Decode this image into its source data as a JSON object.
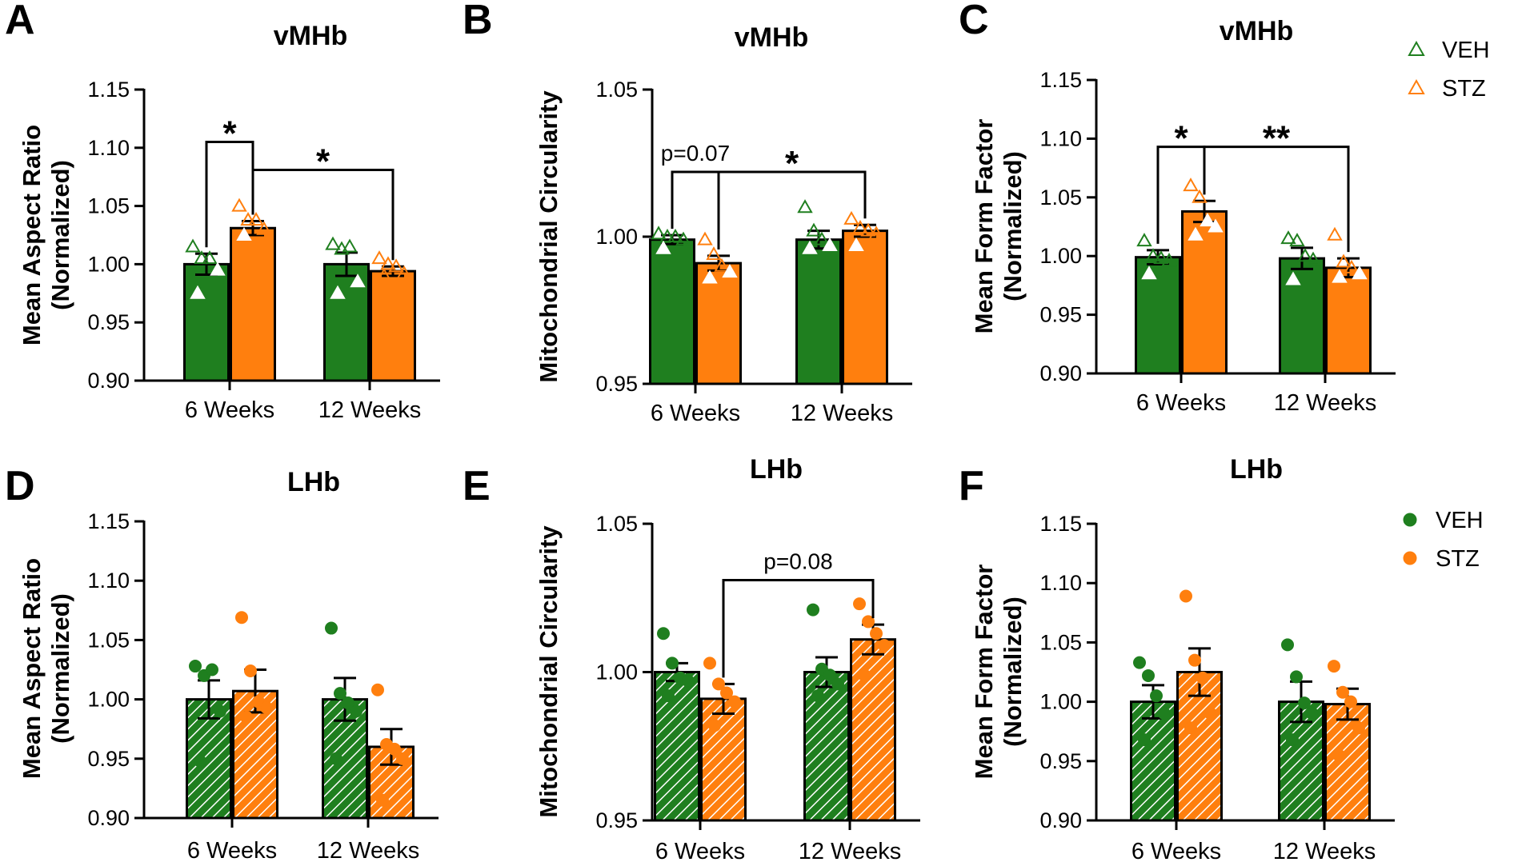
{
  "colors": {
    "veh": "#1f7f1f",
    "stz": "#ff7f0e",
    "axis": "#000000"
  },
  "legend_top": {
    "symbol": "triangle-open",
    "items": [
      "VEH",
      "STZ"
    ]
  },
  "legend_bottom": {
    "symbol": "circle-filled",
    "items": [
      "VEH",
      "STZ"
    ]
  },
  "chart_data": [
    {
      "panel": "A",
      "type": "bar",
      "title": "vMHb",
      "ylabel": [
        "Mean Aspect Ratio",
        "(Normalized)"
      ],
      "ylim": [
        0.9,
        1.15
      ],
      "yticks": [
        "0.90",
        "0.95",
        "1.00",
        "1.05",
        "1.10",
        "1.15"
      ],
      "categories": [
        "6 Weeks",
        "12 Weeks"
      ],
      "point_style": "triangle",
      "hatched": false,
      "series": [
        {
          "name": "VEH",
          "values": [
            1.0,
            1.0
          ],
          "sem": [
            0.009,
            0.01
          ],
          "points": [
            [
              1.015,
              1.005,
              1.005,
              0.995,
              0.975
            ],
            [
              1.017,
              1.013,
              1.015,
              0.985,
              0.975
            ]
          ]
        },
        {
          "name": "STZ",
          "values": [
            1.031,
            0.994
          ],
          "sem": [
            0.006,
            0.004
          ],
          "points": [
            [
              1.05,
              1.038,
              1.038,
              1.03,
              1.025
            ],
            [
              1.005,
              1.0,
              0.998,
              0.992,
              0.99
            ]
          ]
        }
      ],
      "annotations": [
        {
          "text": "*",
          "from": [
            0,
            0
          ],
          "to": [
            0,
            1
          ],
          "level": 1.105
        },
        {
          "text": "*",
          "from": [
            0,
            1
          ],
          "to": [
            1,
            1
          ],
          "level": 1.081
        }
      ]
    },
    {
      "panel": "B",
      "type": "bar",
      "title": "vMHb",
      "ylabel": [
        "Mitochondrial Circularity"
      ],
      "ylim": [
        0.95,
        1.05
      ],
      "yticks": [
        "0.95",
        "1.00",
        "1.05"
      ],
      "categories": [
        "6 Weeks",
        "12 Weeks"
      ],
      "point_style": "triangle",
      "hatched": false,
      "series": [
        {
          "name": "VEH",
          "values": [
            0.999,
            0.999
          ],
          "sem": [
            0.0015,
            0.003
          ],
          "points": [
            [
              1.001,
              1.0,
              1.0,
              0.999,
              0.996
            ],
            [
              1.01,
              1.002,
              0.999,
              0.997,
              0.996
            ]
          ]
        },
        {
          "name": "STZ",
          "values": [
            0.991,
            1.002
          ],
          "sem": [
            0.0025,
            0.002
          ],
          "points": [
            [
              0.999,
              0.994,
              0.99,
              0.988,
              0.986
            ],
            [
              1.006,
              1.003,
              1.002,
              1.001,
              0.997
            ]
          ]
        }
      ],
      "annotations": [
        {
          "text": "p=0.07",
          "from": [
            0,
            0
          ],
          "to": [
            0,
            1
          ],
          "level": 1.022
        },
        {
          "text": "*",
          "from": [
            0,
            1
          ],
          "to": [
            1,
            1
          ],
          "level": 1.022
        }
      ]
    },
    {
      "panel": "C",
      "type": "bar",
      "title": "vMHb",
      "ylabel": [
        "Mean Form Factor",
        "(Normalized)"
      ],
      "ylim": [
        0.9,
        1.15
      ],
      "yticks": [
        "0.90",
        "0.95",
        "1.00",
        "1.05",
        "1.10",
        "1.15"
      ],
      "categories": [
        "6 Weeks",
        "12 Weeks"
      ],
      "point_style": "triangle",
      "hatched": false,
      "series": [
        {
          "name": "VEH",
          "values": [
            0.999,
            0.998
          ],
          "sem": [
            0.006,
            0.009
          ],
          "points": [
            [
              1.013,
              1.0,
              0.998,
              0.996,
              0.985
            ],
            [
              1.015,
              1.013,
              1.0,
              0.997,
              0.98
            ]
          ]
        },
        {
          "name": "STZ",
          "values": [
            1.038,
            0.99
          ],
          "sem": [
            0.009,
            0.008
          ],
          "points": [
            [
              1.06,
              1.05,
              1.03,
              1.025,
              1.018
            ],
            [
              1.018,
              0.995,
              0.99,
              0.985,
              0.982
            ]
          ]
        }
      ],
      "annotations": [
        {
          "text": "*",
          "from": [
            0,
            0
          ],
          "to": [
            0,
            1
          ],
          "level": 1.093
        },
        {
          "text": "**",
          "from": [
            0,
            1
          ],
          "to": [
            1,
            1
          ],
          "level": 1.093
        }
      ]
    },
    {
      "panel": "D",
      "type": "bar",
      "title": "LHb",
      "ylabel": [
        "Mean Aspect Ratio",
        "(Normalized)"
      ],
      "ylim": [
        0.9,
        1.15
      ],
      "yticks": [
        "0.90",
        "0.95",
        "1.00",
        "1.05",
        "1.10",
        "1.15"
      ],
      "categories": [
        "6 Weeks",
        "12 Weeks"
      ],
      "point_style": "circle",
      "hatched": true,
      "series": [
        {
          "name": "VEH",
          "values": [
            1.0,
            1.0
          ],
          "sem": [
            0.016,
            0.018
          ],
          "points": [
            [
              1.028,
              1.02,
              1.025,
              0.99,
              0.948
            ],
            [
              1.06,
              1.005,
              0.997,
              0.99,
              0.95
            ]
          ]
        },
        {
          "name": "STZ",
          "values": [
            1.007,
            0.96
          ],
          "sem": [
            0.018,
            0.015
          ],
          "points": [
            [
              1.069,
              1.024,
              0.998,
              0.993,
              0.985
            ],
            [
              1.008,
              0.962,
              0.958,
              0.95,
              0.915
            ]
          ]
        }
      ],
      "annotations": []
    },
    {
      "panel": "E",
      "type": "bar",
      "title": "LHb",
      "ylabel": [
        "Mitochondrial Circularity"
      ],
      "ylim": [
        0.95,
        1.05
      ],
      "yticks": [
        "0.95",
        "1.00",
        "1.05"
      ],
      "categories": [
        "6 Weeks",
        "12 Weeks"
      ],
      "point_style": "circle",
      "hatched": true,
      "series": [
        {
          "name": "VEH",
          "values": [
            1.0,
            1.0
          ],
          "sem": [
            0.003,
            0.005
          ],
          "points": [
            [
              1.013,
              1.003,
              0.998,
              0.997,
              0.992
            ],
            [
              1.021,
              1.001,
              0.999,
              0.996,
              0.992
            ]
          ]
        },
        {
          "name": "STZ",
          "values": [
            0.991,
            1.011
          ],
          "sem": [
            0.005,
            0.005
          ],
          "points": [
            [
              1.003,
              0.996,
              0.993,
              0.99,
              0.982
            ],
            [
              1.023,
              1.017,
              1.013,
              1.009,
              0.999
            ]
          ]
        }
      ],
      "annotations": [
        {
          "text": "p=0.08",
          "from": [
            0,
            1
          ],
          "to": [
            1,
            1
          ],
          "level": 1.031
        }
      ]
    },
    {
      "panel": "F",
      "type": "bar",
      "title": "LHb",
      "ylabel": [
        "Mean Form Factor",
        "(Normalized)"
      ],
      "ylim": [
        0.9,
        1.15
      ],
      "yticks": [
        "0.90",
        "0.95",
        "1.00",
        "1.05",
        "1.10",
        "1.15"
      ],
      "categories": [
        "6 Weeks",
        "12 Weeks"
      ],
      "point_style": "circle",
      "hatched": true,
      "series": [
        {
          "name": "VEH",
          "values": [
            1.0,
            1.0
          ],
          "sem": [
            0.014,
            0.017
          ],
          "points": [
            [
              1.033,
              1.022,
              1.005,
              0.99,
              0.968
            ],
            [
              1.048,
              1.021,
              0.999,
              0.99,
              0.968
            ]
          ]
        },
        {
          "name": "STZ",
          "values": [
            1.025,
            0.998
          ],
          "sem": [
            0.02,
            0.013
          ],
          "points": [
            [
              1.089,
              1.035,
              1.02,
              0.99,
              0.978
            ],
            [
              1.03,
              1.008,
              1.0,
              0.978,
              0.955
            ]
          ]
        }
      ],
      "annotations": []
    }
  ]
}
